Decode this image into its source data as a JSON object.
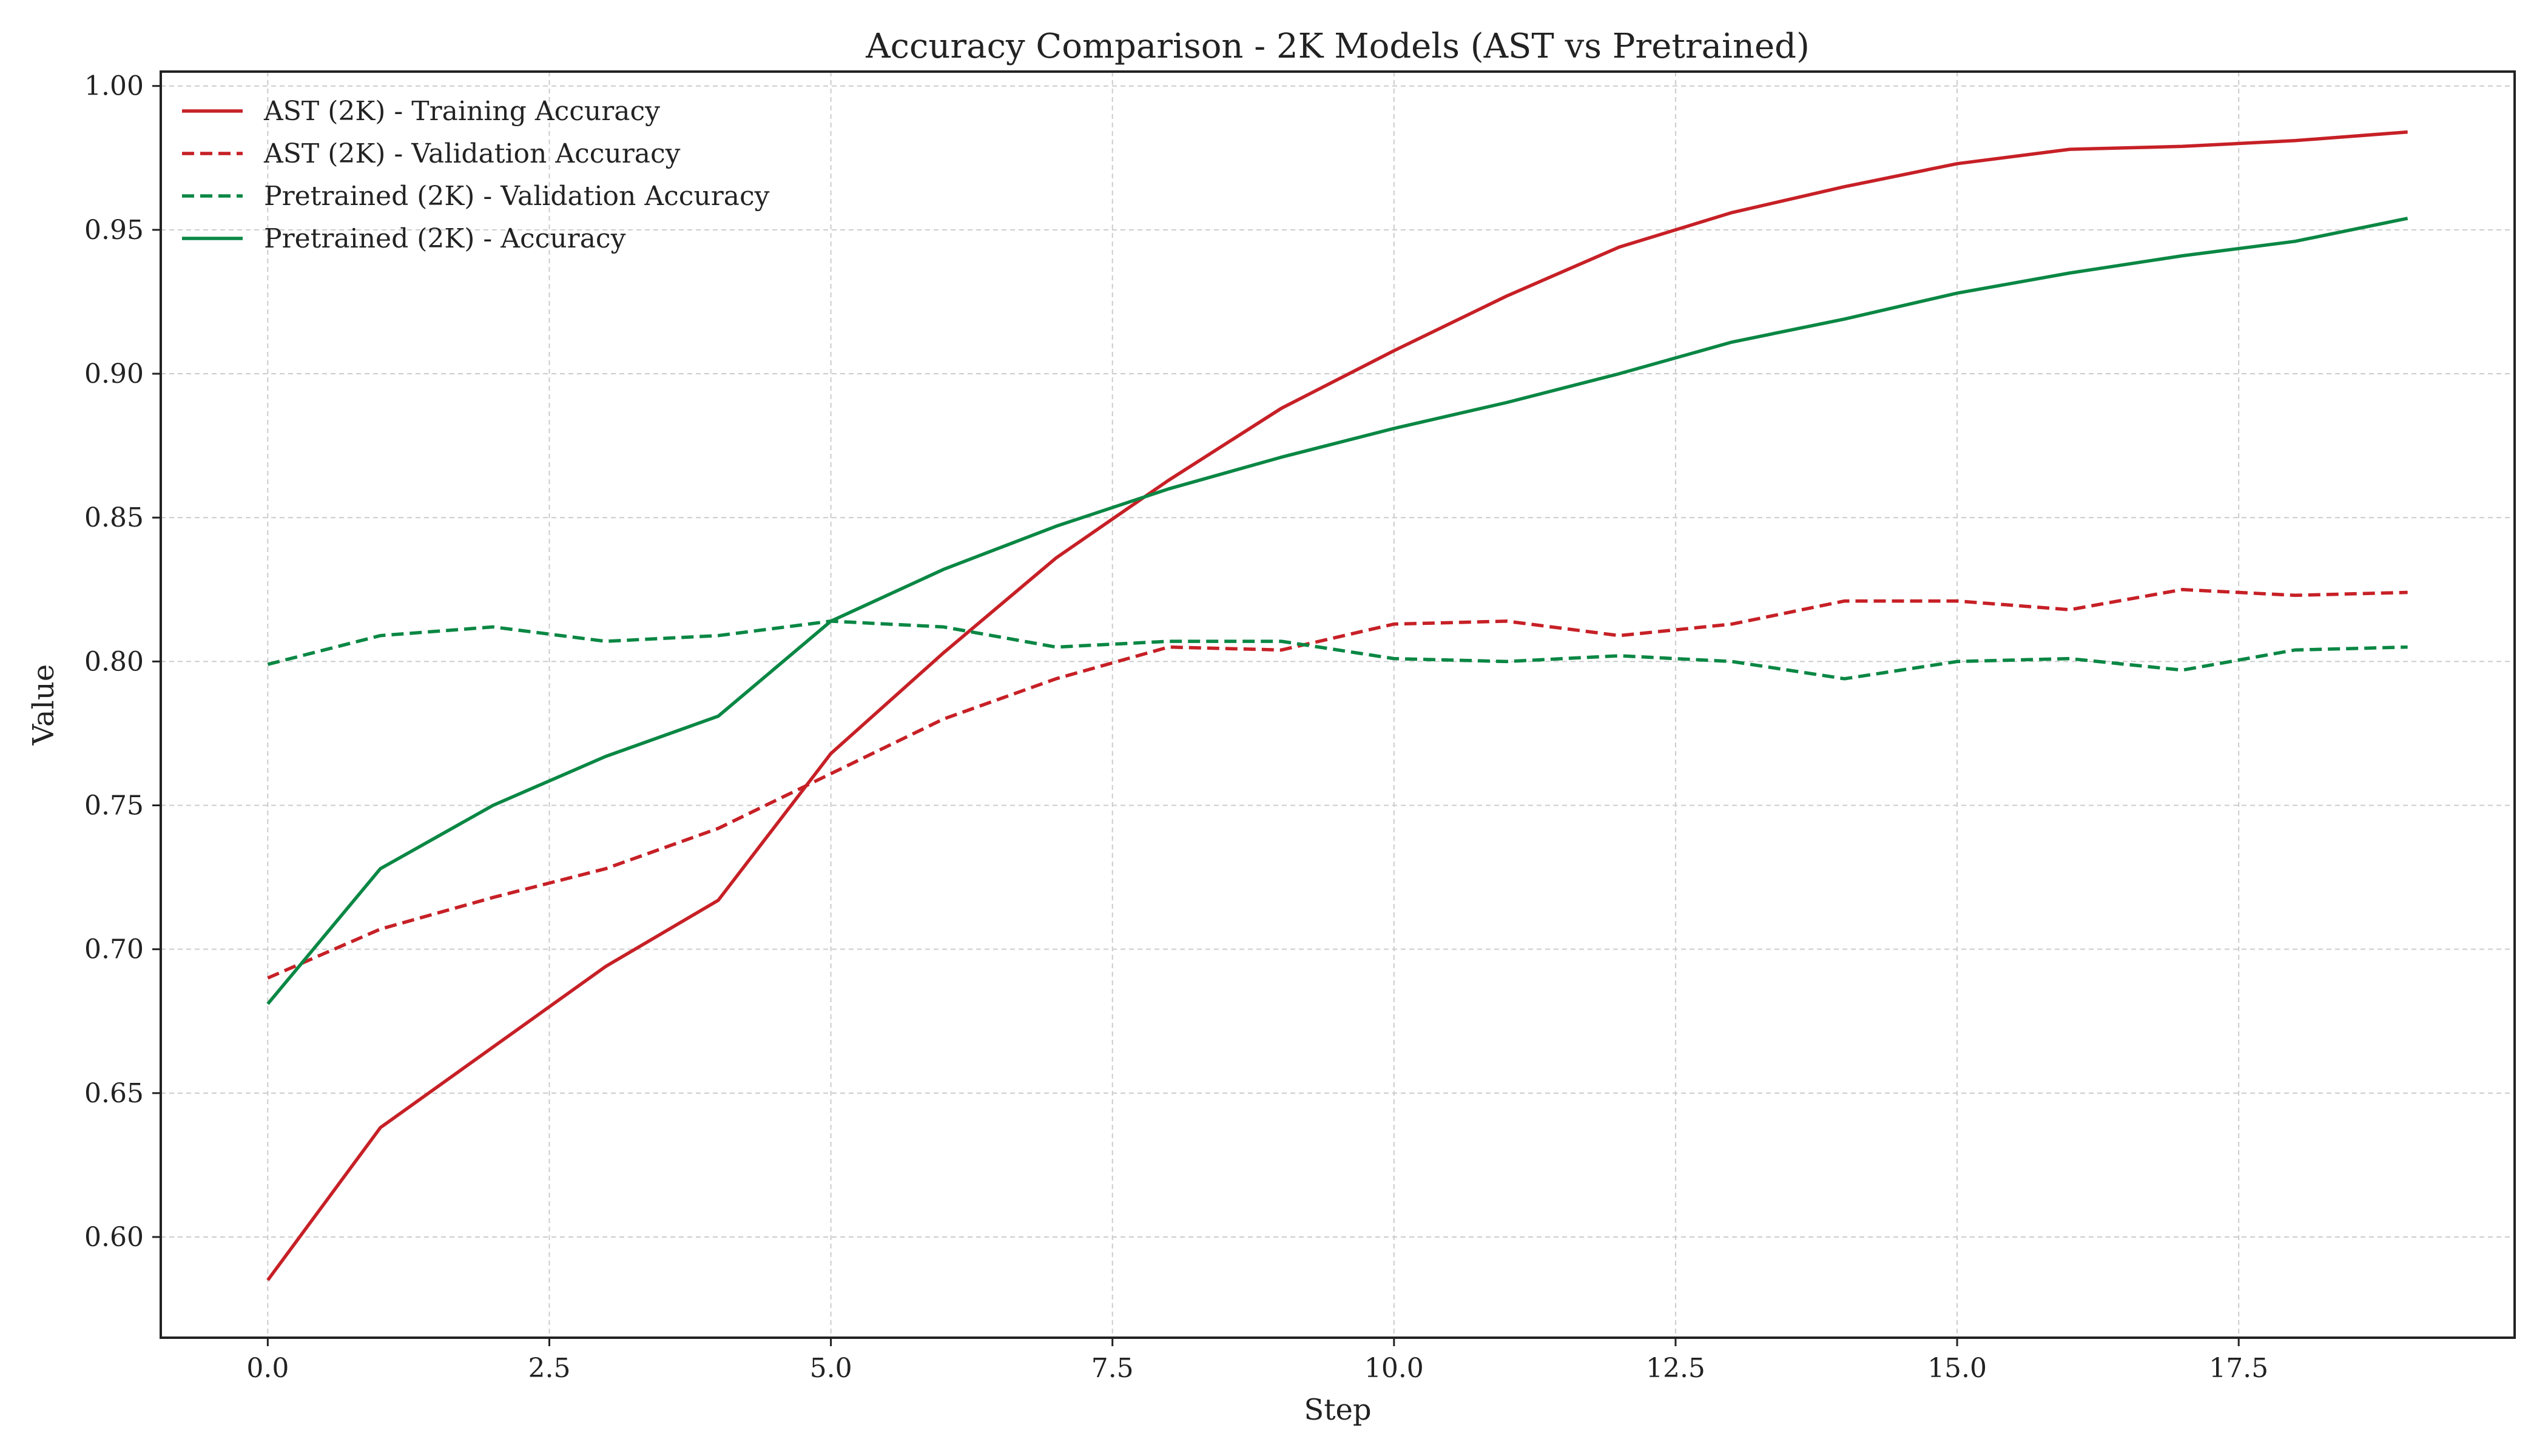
{
  "chart_data": {
    "type": "line",
    "title": "Accuracy Comparison - 2K Models (AST vs Pretrained)",
    "xlabel": "Step",
    "ylabel": "Value",
    "xlim": [
      -0.95,
      19.95
    ],
    "ylim": [
      0.565,
      1.005
    ],
    "xticks": [
      0.0,
      2.5,
      5.0,
      7.5,
      10.0,
      12.5,
      15.0,
      17.5
    ],
    "xtick_labels": [
      "0.0",
      "2.5",
      "5.0",
      "7.5",
      "10.0",
      "12.5",
      "15.0",
      "17.5"
    ],
    "yticks": [
      0.6,
      0.65,
      0.7,
      0.75,
      0.8,
      0.85,
      0.9,
      0.95,
      1.0
    ],
    "ytick_labels": [
      "0.60",
      "0.65",
      "0.70",
      "0.75",
      "0.80",
      "0.85",
      "0.90",
      "0.95",
      "1.00"
    ],
    "grid": true,
    "legend_position": "top-left",
    "x": [
      0,
      1,
      2,
      3,
      4,
      5,
      6,
      7,
      8,
      9,
      10,
      11,
      12,
      13,
      14,
      15,
      16,
      17,
      18,
      19
    ],
    "series": [
      {
        "name": "AST (2K) - Training Accuracy",
        "color": "#c62026",
        "style": "solid",
        "values": [
          0.585,
          0.638,
          0.666,
          0.694,
          0.717,
          0.768,
          0.803,
          0.836,
          0.863,
          0.888,
          0.908,
          0.927,
          0.944,
          0.956,
          0.965,
          0.973,
          0.978,
          0.979,
          0.981,
          0.984
        ]
      },
      {
        "name": "AST (2K) - Validation Accuracy",
        "color": "#c62026",
        "style": "dashed",
        "values": [
          0.69,
          0.707,
          0.718,
          0.728,
          0.742,
          0.761,
          0.78,
          0.794,
          0.805,
          0.804,
          0.813,
          0.814,
          0.809,
          0.813,
          0.821,
          0.821,
          0.818,
          0.825,
          0.823,
          0.824
        ]
      },
      {
        "name": "Pretrained (2K) - Validation Accuracy",
        "color": "#0a8744",
        "style": "dashed",
        "values": [
          0.799,
          0.809,
          0.812,
          0.807,
          0.809,
          0.814,
          0.812,
          0.805,
          0.807,
          0.807,
          0.801,
          0.8,
          0.802,
          0.8,
          0.794,
          0.8,
          0.801,
          0.797,
          0.804,
          0.805
        ]
      },
      {
        "name": "Pretrained (2K) - Accuracy",
        "color": "#0a8744",
        "style": "solid",
        "values": [
          0.681,
          0.728,
          0.75,
          0.767,
          0.781,
          0.814,
          0.832,
          0.847,
          0.86,
          0.871,
          0.881,
          0.89,
          0.9,
          0.911,
          0.919,
          0.928,
          0.935,
          0.941,
          0.946,
          0.954
        ]
      }
    ]
  }
}
